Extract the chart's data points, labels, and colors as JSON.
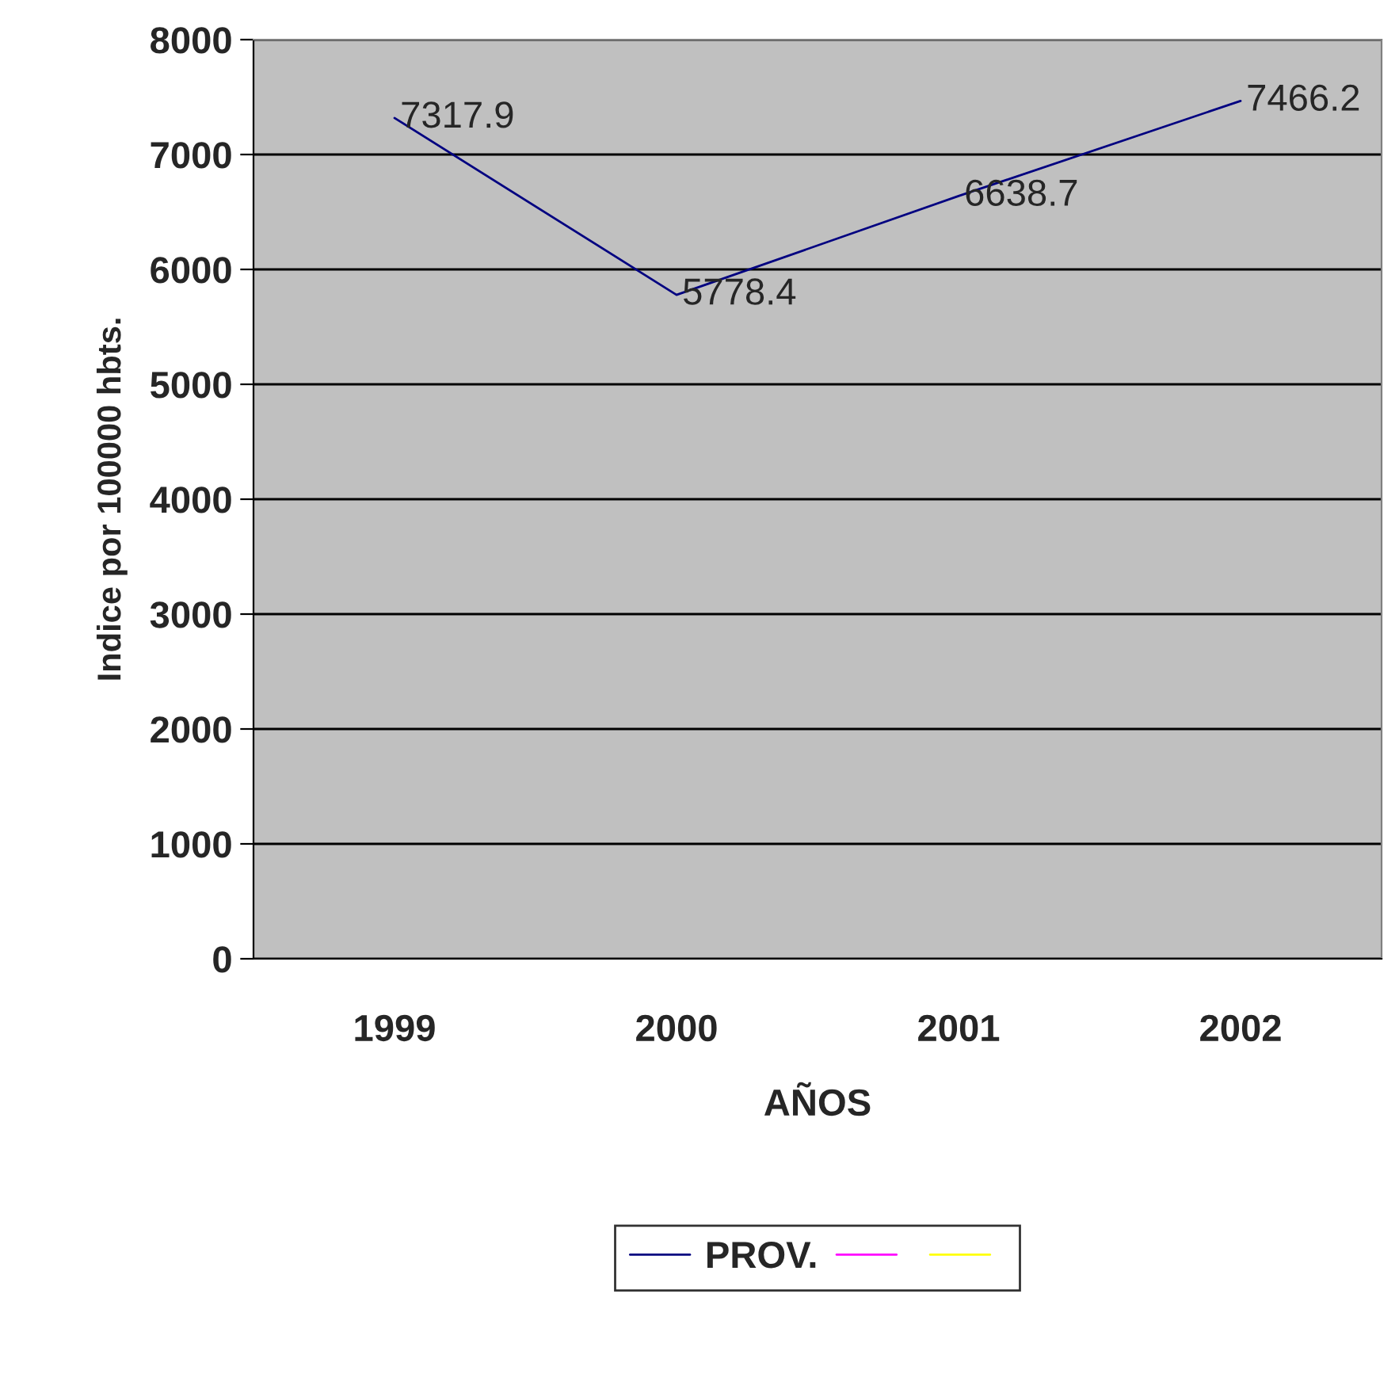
{
  "chart_data": {
    "type": "line",
    "xlabel": "AÑOS",
    "ylabel": "Indice por 100000 hbts.",
    "categories": [
      "1999",
      "2000",
      "2001",
      "2002"
    ],
    "series": [
      {
        "name": "PROV.",
        "color": "#000080",
        "values": [
          7317.9,
          5778.4,
          6638.7,
          7466.2
        ]
      },
      {
        "color": "#ff00ff",
        "values": [
          null,
          null,
          null,
          null
        ]
      },
      {
        "color": "#ffff00",
        "values": [
          null,
          null,
          null,
          null
        ]
      }
    ],
    "ylim": [
      0,
      8000
    ],
    "yticks": [
      0,
      1000,
      2000,
      3000,
      4000,
      5000,
      6000,
      7000,
      8000
    ],
    "grid": "y",
    "legend": "bottom",
    "data_labels": true,
    "marker": "none",
    "line_style": "solid"
  }
}
